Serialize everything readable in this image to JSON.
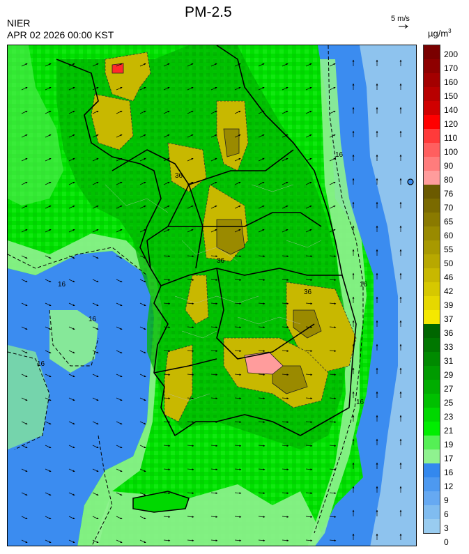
{
  "header": {
    "agency": "NIER",
    "datetime": "APR 02 2026 00:00 KST",
    "title": "PM-2.5",
    "wind_reference": "5 m/s",
    "unit": "µg/m",
    "unit_exponent": "3"
  },
  "legend": {
    "labels": [
      "200",
      "170",
      "160",
      "150",
      "140",
      "120",
      "110",
      "100",
      "90",
      "80",
      "76",
      "70",
      "65",
      "60",
      "55",
      "50",
      "46",
      "42",
      "39",
      "37",
      "36",
      "33",
      "31",
      "29",
      "27",
      "25",
      "23",
      "21",
      "19",
      "17",
      "16",
      "12",
      "9",
      "6",
      "3",
      "0"
    ],
    "colors": [
      "#7a0000",
      "#8e0000",
      "#a30000",
      "#b80000",
      "#d00000",
      "#ff0000",
      "#ff3a3a",
      "#ff5f5f",
      "#ff7c7c",
      "#ff9c9c",
      "#6b5a00",
      "#7a6a00",
      "#8a7a00",
      "#998a00",
      "#a89900",
      "#b8a800",
      "#c8b800",
      "#d6c800",
      "#e6d800",
      "#f5e800",
      "#006600",
      "#007700",
      "#008a00",
      "#009b00",
      "#00ad00",
      "#00c000",
      "#00d800",
      "#00ee00",
      "#55f055",
      "#8ff28f",
      "#3388ee",
      "#4d99f0",
      "#66a9f2",
      "#80bcf0",
      "#99ccf0"
    ]
  },
  "map": {
    "contour_labels": [
      "16",
      "16",
      "16",
      "16",
      "16",
      "16",
      "36",
      "36",
      "36"
    ]
  }
}
